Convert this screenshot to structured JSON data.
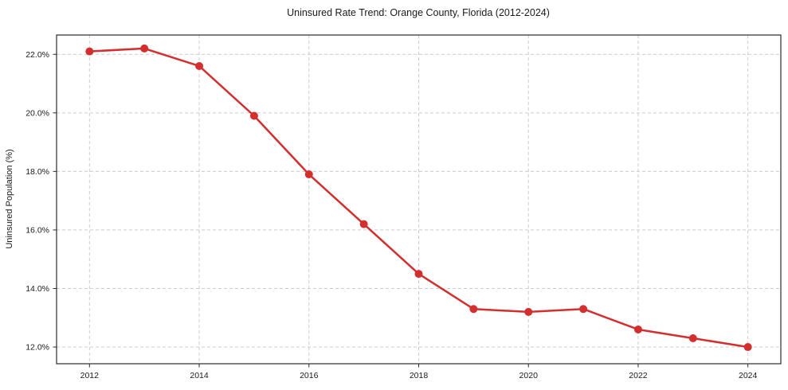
{
  "chart_data": {
    "type": "line",
    "title": "Uninsured Rate Trend: Orange County, Florida (2012-2024)",
    "xlabel": "",
    "ylabel": "Uninsured Population (%)",
    "x": [
      2012,
      2013,
      2014,
      2015,
      2016,
      2017,
      2018,
      2019,
      2020,
      2021,
      2022,
      2023,
      2024
    ],
    "series": [
      {
        "name": "Uninsured rate",
        "values": [
          22.1,
          22.2,
          21.6,
          19.9,
          17.9,
          16.2,
          14.5,
          13.3,
          13.2,
          13.3,
          12.6,
          12.3,
          12.0
        ]
      }
    ],
    "x_ticks": [
      2012,
      2014,
      2016,
      2018,
      2020,
      2022,
      2024
    ],
    "y_ticks": [
      12.0,
      14.0,
      16.0,
      18.0,
      20.0,
      22.0
    ],
    "y_tick_suffix": "%",
    "xlim": [
      2011.4,
      2024.6
    ],
    "ylim": [
      11.43,
      22.66
    ],
    "grid": true,
    "legend": false,
    "colors": {
      "line": "#d32f2f",
      "marker": "#d32f2f",
      "grid": "#cccccc",
      "axis": "#2b2b2b",
      "text": "#1a1a1a",
      "background": "#ffffff"
    },
    "style": {
      "line_width": 2.5,
      "marker_radius": 5,
      "grid_dash": "4 3"
    }
  }
}
